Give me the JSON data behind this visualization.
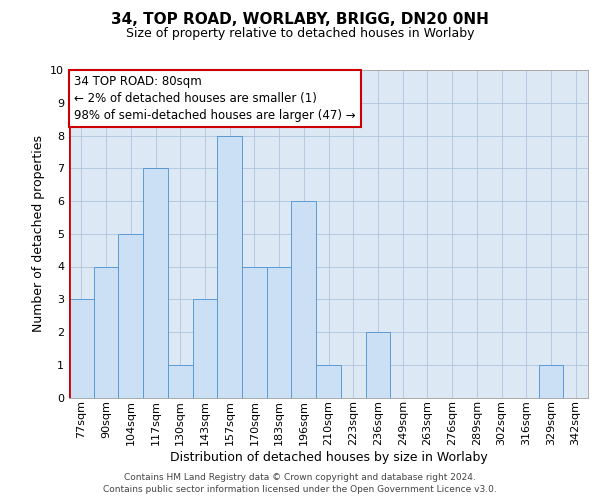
{
  "title": "34, TOP ROAD, WORLABY, BRIGG, DN20 0NH",
  "subtitle": "Size of property relative to detached houses in Worlaby",
  "xlabel": "Distribution of detached houses by size in Worlaby",
  "ylabel": "Number of detached properties",
  "categories": [
    "77sqm",
    "90sqm",
    "104sqm",
    "117sqm",
    "130sqm",
    "143sqm",
    "157sqm",
    "170sqm",
    "183sqm",
    "196sqm",
    "210sqm",
    "223sqm",
    "236sqm",
    "249sqm",
    "263sqm",
    "276sqm",
    "289sqm",
    "302sqm",
    "316sqm",
    "329sqm",
    "342sqm"
  ],
  "values": [
    3,
    4,
    5,
    7,
    1,
    3,
    8,
    4,
    4,
    6,
    1,
    0,
    2,
    0,
    0,
    0,
    0,
    0,
    0,
    1,
    0
  ],
  "bar_color": "#cce0f5",
  "bar_edge_color": "#5b9bd5",
  "grid_color": "#b0c4de",
  "bg_color": "#dde8f5",
  "annotation_box_edge": "#cc0000",
  "annotation_line1": "34 TOP ROAD: 80sqm",
  "annotation_line2": "← 2% of detached houses are smaller (1)",
  "annotation_line3": "98% of semi-detached houses are larger (47) →",
  "ylim": [
    0,
    10
  ],
  "yticks": [
    0,
    1,
    2,
    3,
    4,
    5,
    6,
    7,
    8,
    9,
    10
  ],
  "footnote1": "Contains HM Land Registry data © Crown copyright and database right 2024.",
  "footnote2": "Contains public sector information licensed under the Open Government Licence v3.0.",
  "red_line_color": "#cc0000",
  "title_fontsize": 11,
  "subtitle_fontsize": 9,
  "ylabel_fontsize": 9,
  "xlabel_fontsize": 9,
  "tick_fontsize": 8,
  "annot_fontsize": 8.5,
  "footnote_fontsize": 6.5
}
